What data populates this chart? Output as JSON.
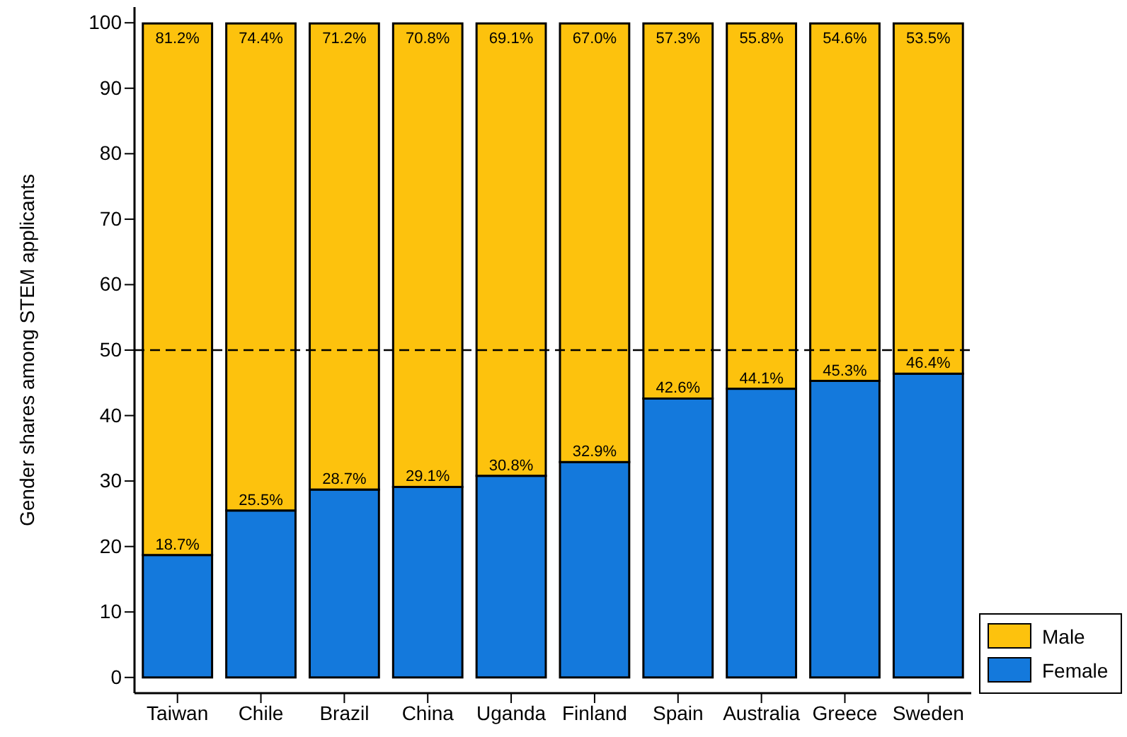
{
  "chart_data": {
    "type": "bar",
    "stacked": true,
    "ylabel": "Gender shares among STEM applicants",
    "categories": [
      "Taiwan",
      "Chile",
      "Brazil",
      "China",
      "Uganda",
      "Finland",
      "Spain",
      "Australia",
      "Greece",
      "Sweden"
    ],
    "series": [
      {
        "name": "Female",
        "color": "#1479dc",
        "values": [
          18.7,
          25.5,
          28.7,
          29.1,
          30.8,
          32.9,
          42.6,
          44.1,
          45.3,
          46.4
        ],
        "value_labels": [
          "18.7%",
          "25.5%",
          "28.7%",
          "29.1%",
          "30.8%",
          "32.9%",
          "42.6%",
          "44.1%",
          "45.3%",
          "46.4%"
        ]
      },
      {
        "name": "Male",
        "color": "#fdc20d",
        "values": [
          81.2,
          74.4,
          71.2,
          70.8,
          69.1,
          67.0,
          57.3,
          55.8,
          54.6,
          53.5
        ],
        "value_labels": [
          "81.2%",
          "74.4%",
          "71.2%",
          "70.8%",
          "69.1%",
          "67.0%",
          "57.3%",
          "55.8%",
          "54.6%",
          "53.5%"
        ]
      }
    ],
    "ylim": [
      -2.4,
      102.4
    ],
    "yticks": [
      0,
      10,
      20,
      30,
      40,
      50,
      60,
      70,
      80,
      90,
      100
    ],
    "ref_lines": [
      {
        "axis": "y",
        "value": 50,
        "line_style": "dashed",
        "color": "#000000"
      }
    ],
    "grid": false,
    "legend": "right"
  }
}
